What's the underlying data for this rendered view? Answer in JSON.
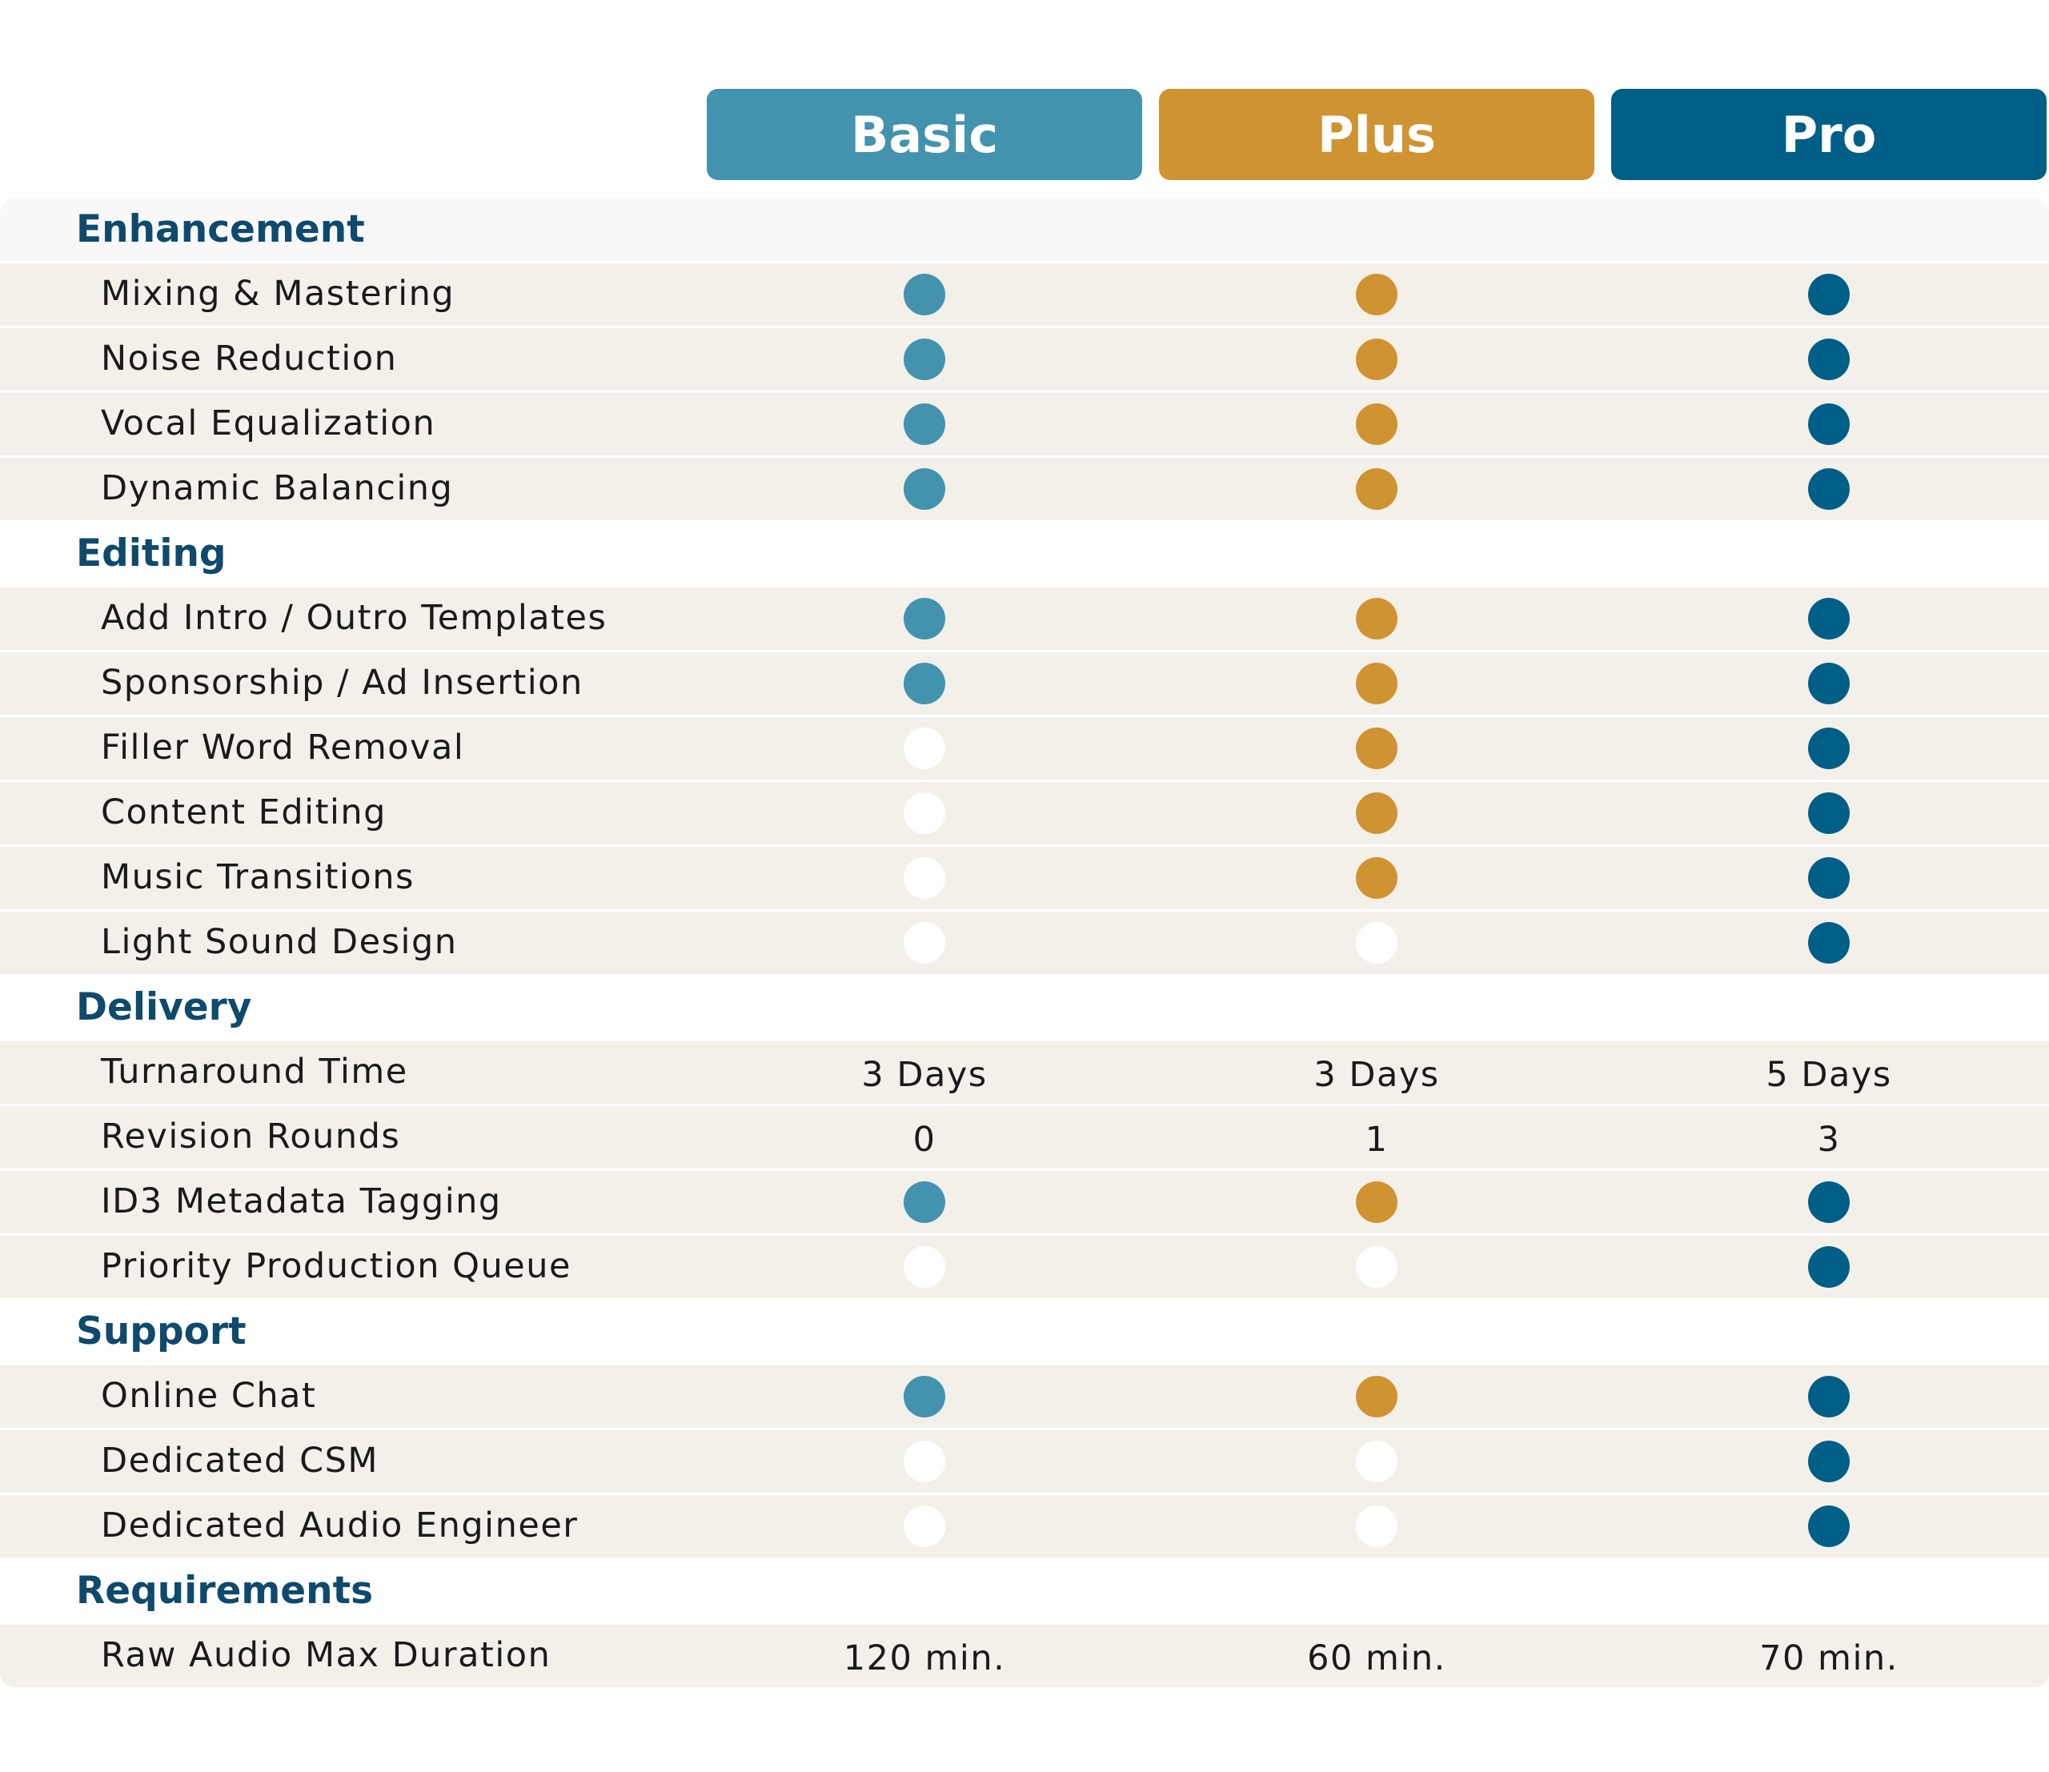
{
  "plans": [
    {
      "name": "Basic",
      "color": "#4393ae"
    },
    {
      "name": "Plus",
      "color": "#d09332"
    },
    {
      "name": "Pro",
      "color": "#005f87"
    }
  ],
  "sections": [
    {
      "title": "Enhancement",
      "rows": [
        {
          "label": "Mixing & Mastering",
          "values": [
            true,
            true,
            true
          ]
        },
        {
          "label": "Noise Reduction",
          "values": [
            true,
            true,
            true
          ]
        },
        {
          "label": "Vocal Equalization",
          "values": [
            true,
            true,
            true
          ]
        },
        {
          "label": "Dynamic Balancing",
          "values": [
            true,
            true,
            true
          ]
        }
      ]
    },
    {
      "title": "Editing",
      "rows": [
        {
          "label": "Add Intro / Outro Templates",
          "values": [
            true,
            true,
            true
          ]
        },
        {
          "label": "Sponsorship / Ad Insertion",
          "values": [
            true,
            true,
            true
          ]
        },
        {
          "label": "Filler Word Removal",
          "values": [
            false,
            true,
            true
          ]
        },
        {
          "label": "Content Editing",
          "values": [
            false,
            true,
            true
          ]
        },
        {
          "label": "Music Transitions",
          "values": [
            false,
            true,
            true
          ]
        },
        {
          "label": "Light Sound Design",
          "values": [
            false,
            false,
            true
          ]
        }
      ]
    },
    {
      "title": "Delivery",
      "rows": [
        {
          "label": "Turnaround Time",
          "values": [
            "3 Days",
            "3 Days",
            "5 Days"
          ]
        },
        {
          "label": "Revision Rounds",
          "values": [
            "0",
            "1",
            "3"
          ]
        },
        {
          "label": "ID3 Metadata Tagging",
          "values": [
            true,
            true,
            true
          ]
        },
        {
          "label": "Priority Production Queue",
          "values": [
            false,
            false,
            true
          ]
        }
      ]
    },
    {
      "title": "Support",
      "rows": [
        {
          "label": "Online Chat",
          "values": [
            true,
            true,
            true
          ]
        },
        {
          "label": "Dedicated CSM",
          "values": [
            false,
            false,
            true
          ]
        },
        {
          "label": "Dedicated Audio Engineer",
          "values": [
            false,
            false,
            true
          ]
        }
      ]
    },
    {
      "title": "Requirements",
      "rows": [
        {
          "label": "Raw Audio Max Duration",
          "values": [
            "120 min.",
            "60 min.",
            "70 min."
          ]
        }
      ]
    }
  ]
}
